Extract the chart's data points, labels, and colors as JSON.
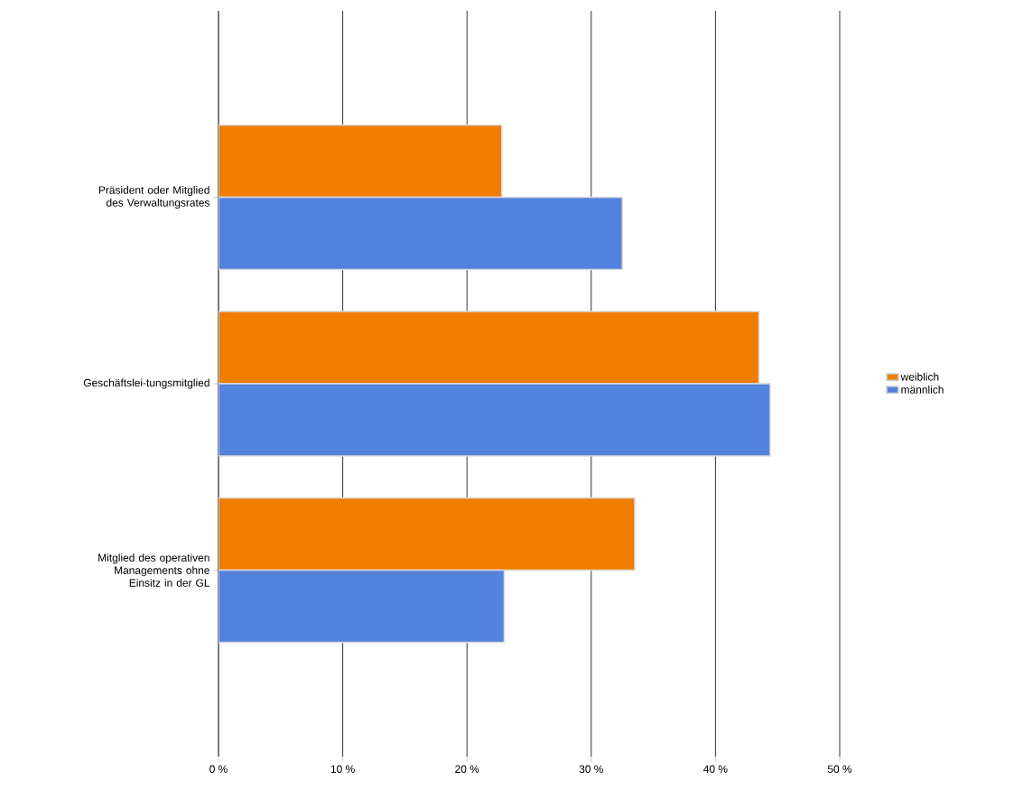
{
  "chart_data": {
    "type": "bar",
    "orientation": "horizontal",
    "categories": [
      "Präsident oder Mitglied des Verwaltungsrates",
      "Geschäftslei-tungsmitglied",
      "Mitglied des operativen Managements ohne Einsitz in der GL"
    ],
    "series": [
      {
        "name": "weiblich",
        "color": "#f07d00",
        "values": [
          22.8,
          43.5,
          33.5
        ]
      },
      {
        "name": "männlich",
        "color": "#5483de",
        "values": [
          32.5,
          44.4,
          23.0
        ]
      }
    ],
    "xlim": [
      0,
      50
    ],
    "xticks": [
      {
        "value": 0,
        "label": "0 %"
      },
      {
        "value": 10,
        "label": "10 %"
      },
      {
        "value": 20,
        "label": "20 %"
      },
      {
        "value": 30,
        "label": "30 %"
      },
      {
        "value": 40,
        "label": "40 %"
      },
      {
        "value": 50,
        "label": "50 %"
      }
    ],
    "grid": "x",
    "legend": "right"
  }
}
